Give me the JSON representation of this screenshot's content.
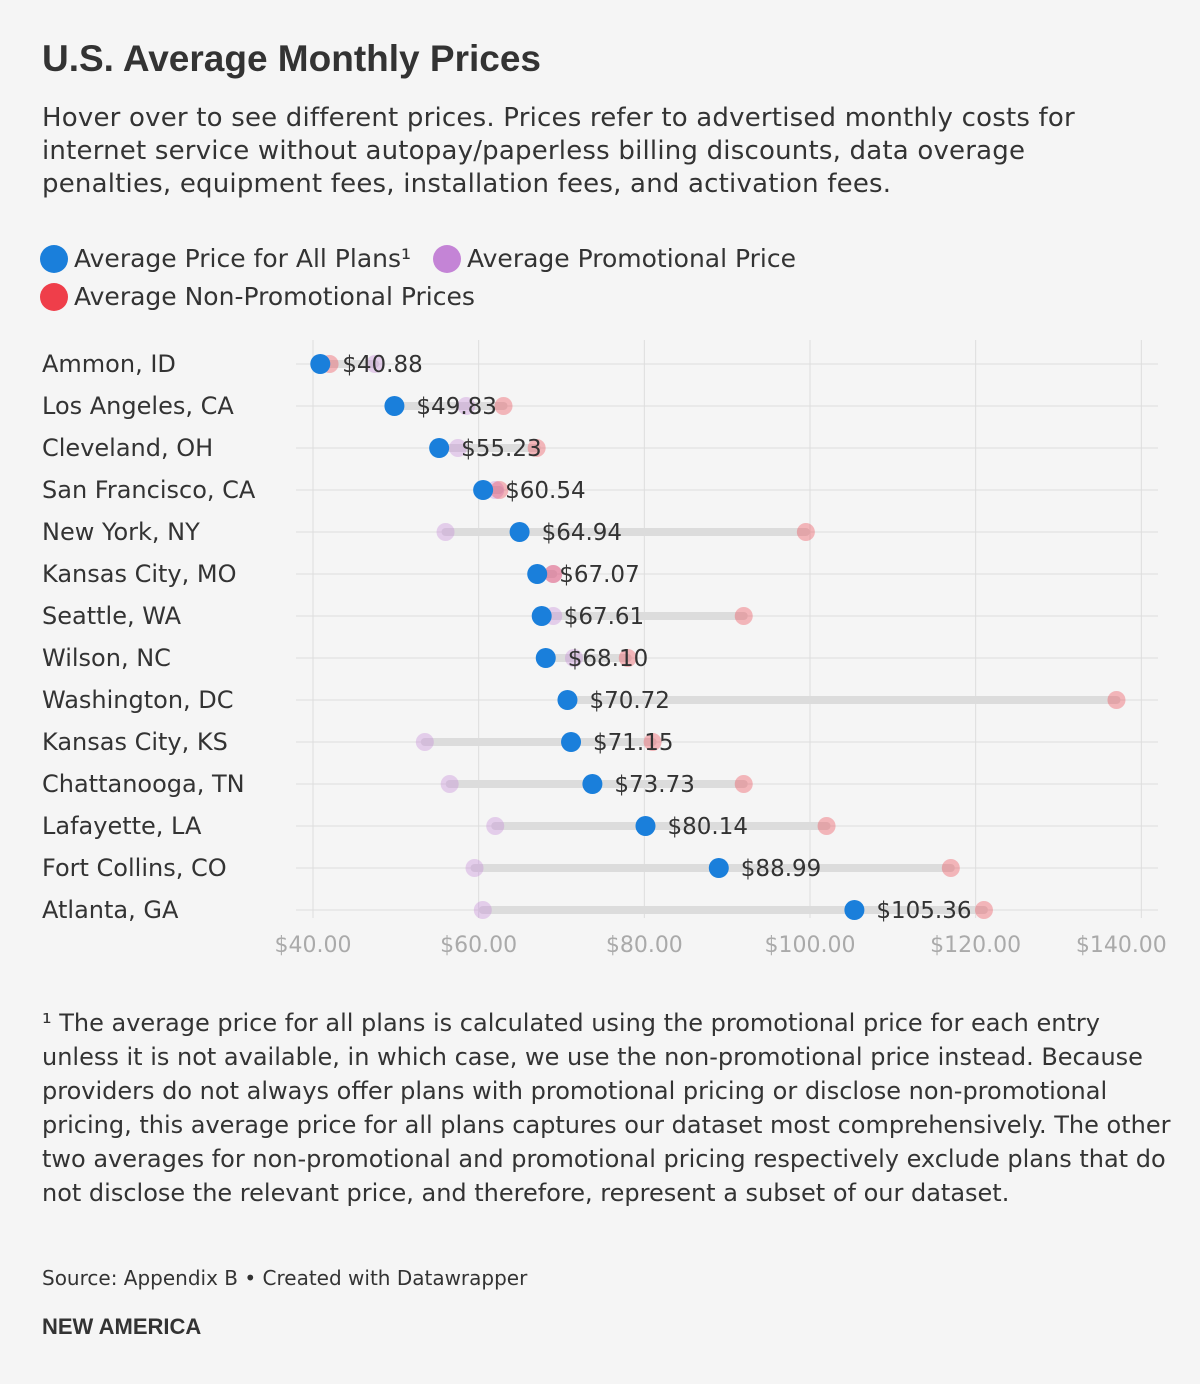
{
  "header": {
    "title": "U.S. Average Monthly Prices",
    "description": "Hover over to see different prices. Prices refer to advertised monthly costs for internet service without autopay/paperless billing discounts, data overage penalties, equipment fees, installation fees, and activation fees."
  },
  "legend": {
    "all_plans": "Average Price for All Plans¹",
    "promotional": "Average Promotional Price",
    "non_promotional": "Average Non-Promotional Prices"
  },
  "colors": {
    "all_plans": "#1a7fdb",
    "promotional": "#c484d6",
    "non_promotional": "#ef3e4a",
    "range_bar": "#dcdcdc",
    "grid": "#dddddd"
  },
  "chart_data": {
    "type": "scatter",
    "title": "U.S. Average Monthly Prices",
    "xlabel": "",
    "ylabel": "",
    "xlim": [
      38,
      145
    ],
    "x_ticks": [
      40,
      60,
      80,
      100,
      120,
      140
    ],
    "x_tick_labels": [
      "$40.00",
      "$60.00",
      "$80.00",
      "$100.00",
      "$120.00",
      "$140.00"
    ],
    "categories": [
      "Ammon, ID",
      "Los Angeles, CA",
      "Cleveland, OH",
      "San Francisco, CA",
      "New York, NY",
      "Kansas City, MO",
      "Seattle, WA",
      "Wilson, NC",
      "Washington, DC",
      "Kansas City, KS",
      "Chattanooga, TN",
      "Lafayette, LA",
      "Fort Collins, CO",
      "Atlanta, GA"
    ],
    "series": [
      {
        "name": "Average Price for All Plans¹",
        "values": [
          40.88,
          49.83,
          55.23,
          60.54,
          64.94,
          67.07,
          67.61,
          68.1,
          70.72,
          71.15,
          73.73,
          80.14,
          88.99,
          105.36
        ]
      },
      {
        "name": "Average Promotional Price",
        "values": [
          47.5,
          58.5,
          57.5,
          62.0,
          56.0,
          69.0,
          69.0,
          71.5,
          null,
          53.5,
          56.5,
          62.0,
          59.5,
          60.5
        ]
      },
      {
        "name": "Average Non-Promotional Prices",
        "values": [
          42.0,
          63.0,
          67.0,
          62.5,
          99.5,
          69.0,
          92.0,
          78.0,
          137.0,
          81.0,
          92.0,
          102.0,
          117.0,
          121.0
        ]
      }
    ],
    "value_labels": [
      "$40.88",
      "$49.83",
      "$55.23",
      "$60.54",
      "$64.94",
      "$67.07",
      "$67.61",
      "$68.10",
      "$70.72",
      "$71.15",
      "$73.73",
      "$80.14",
      "$88.99",
      "$105.36"
    ]
  },
  "footnote": "¹ The average price for all plans is calculated using the promotional price for each entry unless it is not available, in which case, we use the non-promotional price instead. Because providers do not always offer plans with promotional pricing or disclose non-promotional pricing, this average price for all plans captures our dataset most comprehensively. The other two averages for non-promotional and promotional pricing respectively exclude plans that do not disclose the relevant price, and therefore, represent a subset of our dataset.",
  "source": "Source: Appendix B • Created with Datawrapper",
  "brand": "NEW AMERICA"
}
